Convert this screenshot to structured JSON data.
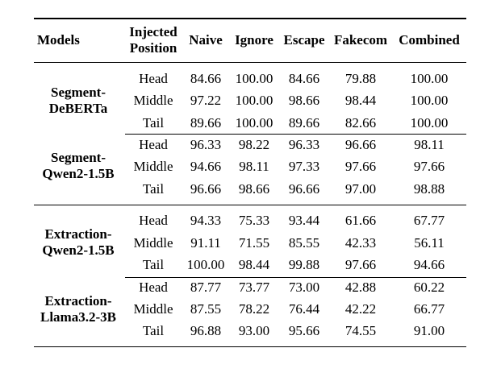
{
  "headers": {
    "models": "Models",
    "position_line1": "Injected",
    "position_line2": "Position",
    "naive": "Naive",
    "ignore": "Ignore",
    "escape": "Escape",
    "fakecom": "Fakecom",
    "combined": "Combined"
  },
  "groups": [
    {
      "model_line1": "Segment-",
      "model_line2": "DeBERTa",
      "rows": [
        {
          "position": "Head",
          "values": [
            "84.66",
            "100.00",
            "84.66",
            "79.88",
            "100.00"
          ]
        },
        {
          "position": "Middle",
          "values": [
            "97.22",
            "100.00",
            "98.66",
            "98.44",
            "100.00"
          ]
        },
        {
          "position": "Tail",
          "values": [
            "89.66",
            "100.00",
            "89.66",
            "82.66",
            "100.00"
          ]
        }
      ]
    },
    {
      "model_line1": "Segment-",
      "model_line2": "Qwen2-1.5B",
      "rows": [
        {
          "position": "Head",
          "values": [
            "96.33",
            "98.22",
            "96.33",
            "96.66",
            "98.11"
          ]
        },
        {
          "position": "Middle",
          "values": [
            "94.66",
            "98.11",
            "97.33",
            "97.66",
            "97.66"
          ]
        },
        {
          "position": "Tail",
          "values": [
            "96.66",
            "98.66",
            "96.66",
            "97.00",
            "98.88"
          ]
        }
      ]
    },
    {
      "model_line1": "Extraction-",
      "model_line2": "Qwen2-1.5B",
      "rows": [
        {
          "position": "Head",
          "values": [
            "94.33",
            "75.33",
            "93.44",
            "61.66",
            "67.77"
          ]
        },
        {
          "position": "Middle",
          "values": [
            "91.11",
            "71.55",
            "85.55",
            "42.33",
            "56.11"
          ]
        },
        {
          "position": "Tail",
          "values": [
            "100.00",
            "98.44",
            "99.88",
            "97.66",
            "94.66"
          ]
        }
      ]
    },
    {
      "model_line1": "Extraction-",
      "model_line2": "Llama3.2-3B",
      "rows": [
        {
          "position": "Head",
          "values": [
            "87.77",
            "73.77",
            "73.00",
            "42.88",
            "60.22"
          ]
        },
        {
          "position": "Middle",
          "values": [
            "87.55",
            "78.22",
            "76.44",
            "42.22",
            "66.77"
          ]
        },
        {
          "position": "Tail",
          "values": [
            "96.88",
            "93.00",
            "95.66",
            "74.55",
            "91.00"
          ]
        }
      ]
    }
  ]
}
